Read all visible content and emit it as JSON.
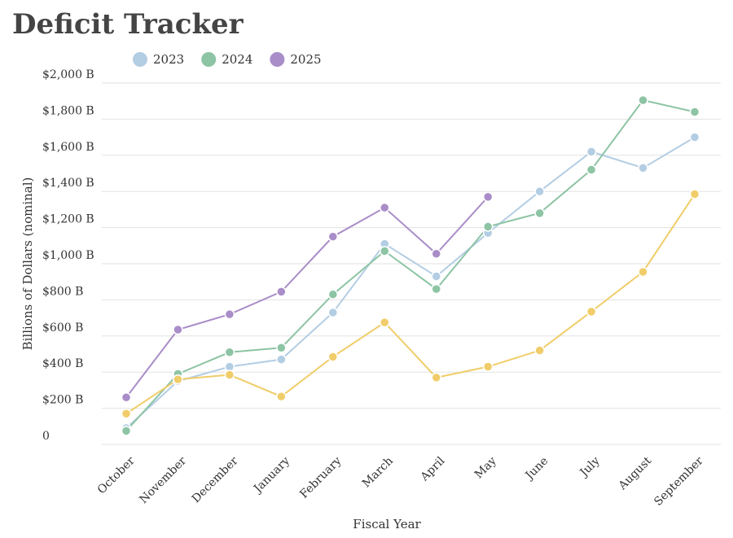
{
  "chart_data": {
    "type": "line",
    "title": "Deficit Tracker",
    "xlabel": "Fiscal Year",
    "ylabel": "Billions of Dollars (nominal)",
    "categories": [
      "October",
      "November",
      "December",
      "January",
      "February",
      "March",
      "April",
      "May",
      "June",
      "July",
      "August",
      "September"
    ],
    "series": [
      {
        "name": "2023",
        "color": "#b3cde3",
        "values": [
          90,
          350,
          430,
          470,
          730,
          1110,
          930,
          1170,
          1400,
          1620,
          1530,
          1700
        ]
      },
      {
        "name": "2024",
        "color": "#8dc4a4",
        "values": [
          75,
          390,
          510,
          535,
          830,
          1070,
          860,
          1205,
          1280,
          1520,
          1905,
          1840
        ]
      },
      {
        "name": "2025",
        "color": "#a98dc8",
        "values": [
          260,
          635,
          720,
          845,
          1150,
          1310,
          1055,
          1370,
          null,
          null,
          null,
          null
        ]
      },
      {
        "color": "#f0cd6a",
        "values": [
          170,
          360,
          385,
          265,
          485,
          675,
          370,
          430,
          520,
          735,
          955,
          1385
        ]
      }
    ],
    "ylim": [
      0,
      2000
    ],
    "yticks": [
      0,
      {
        "value": 200,
        "label": "$200 B"
      },
      {
        "value": 400,
        "label": "$400 B"
      },
      {
        "value": 600,
        "label": "$600 B"
      },
      {
        "value": 800,
        "label": "$800 B"
      },
      {
        "value": 1000,
        "label": "$1,000 B"
      },
      {
        "value": 1200,
        "label": "$1,200 B"
      },
      {
        "value": 1400,
        "label": "$1,400 B"
      },
      {
        "value": 1600,
        "label": "$1,600 B"
      },
      {
        "value": 1800,
        "label": "$1,800 B"
      },
      {
        "value": 2000,
        "label": "$2,000 B"
      }
    ],
    "grid": true
  }
}
